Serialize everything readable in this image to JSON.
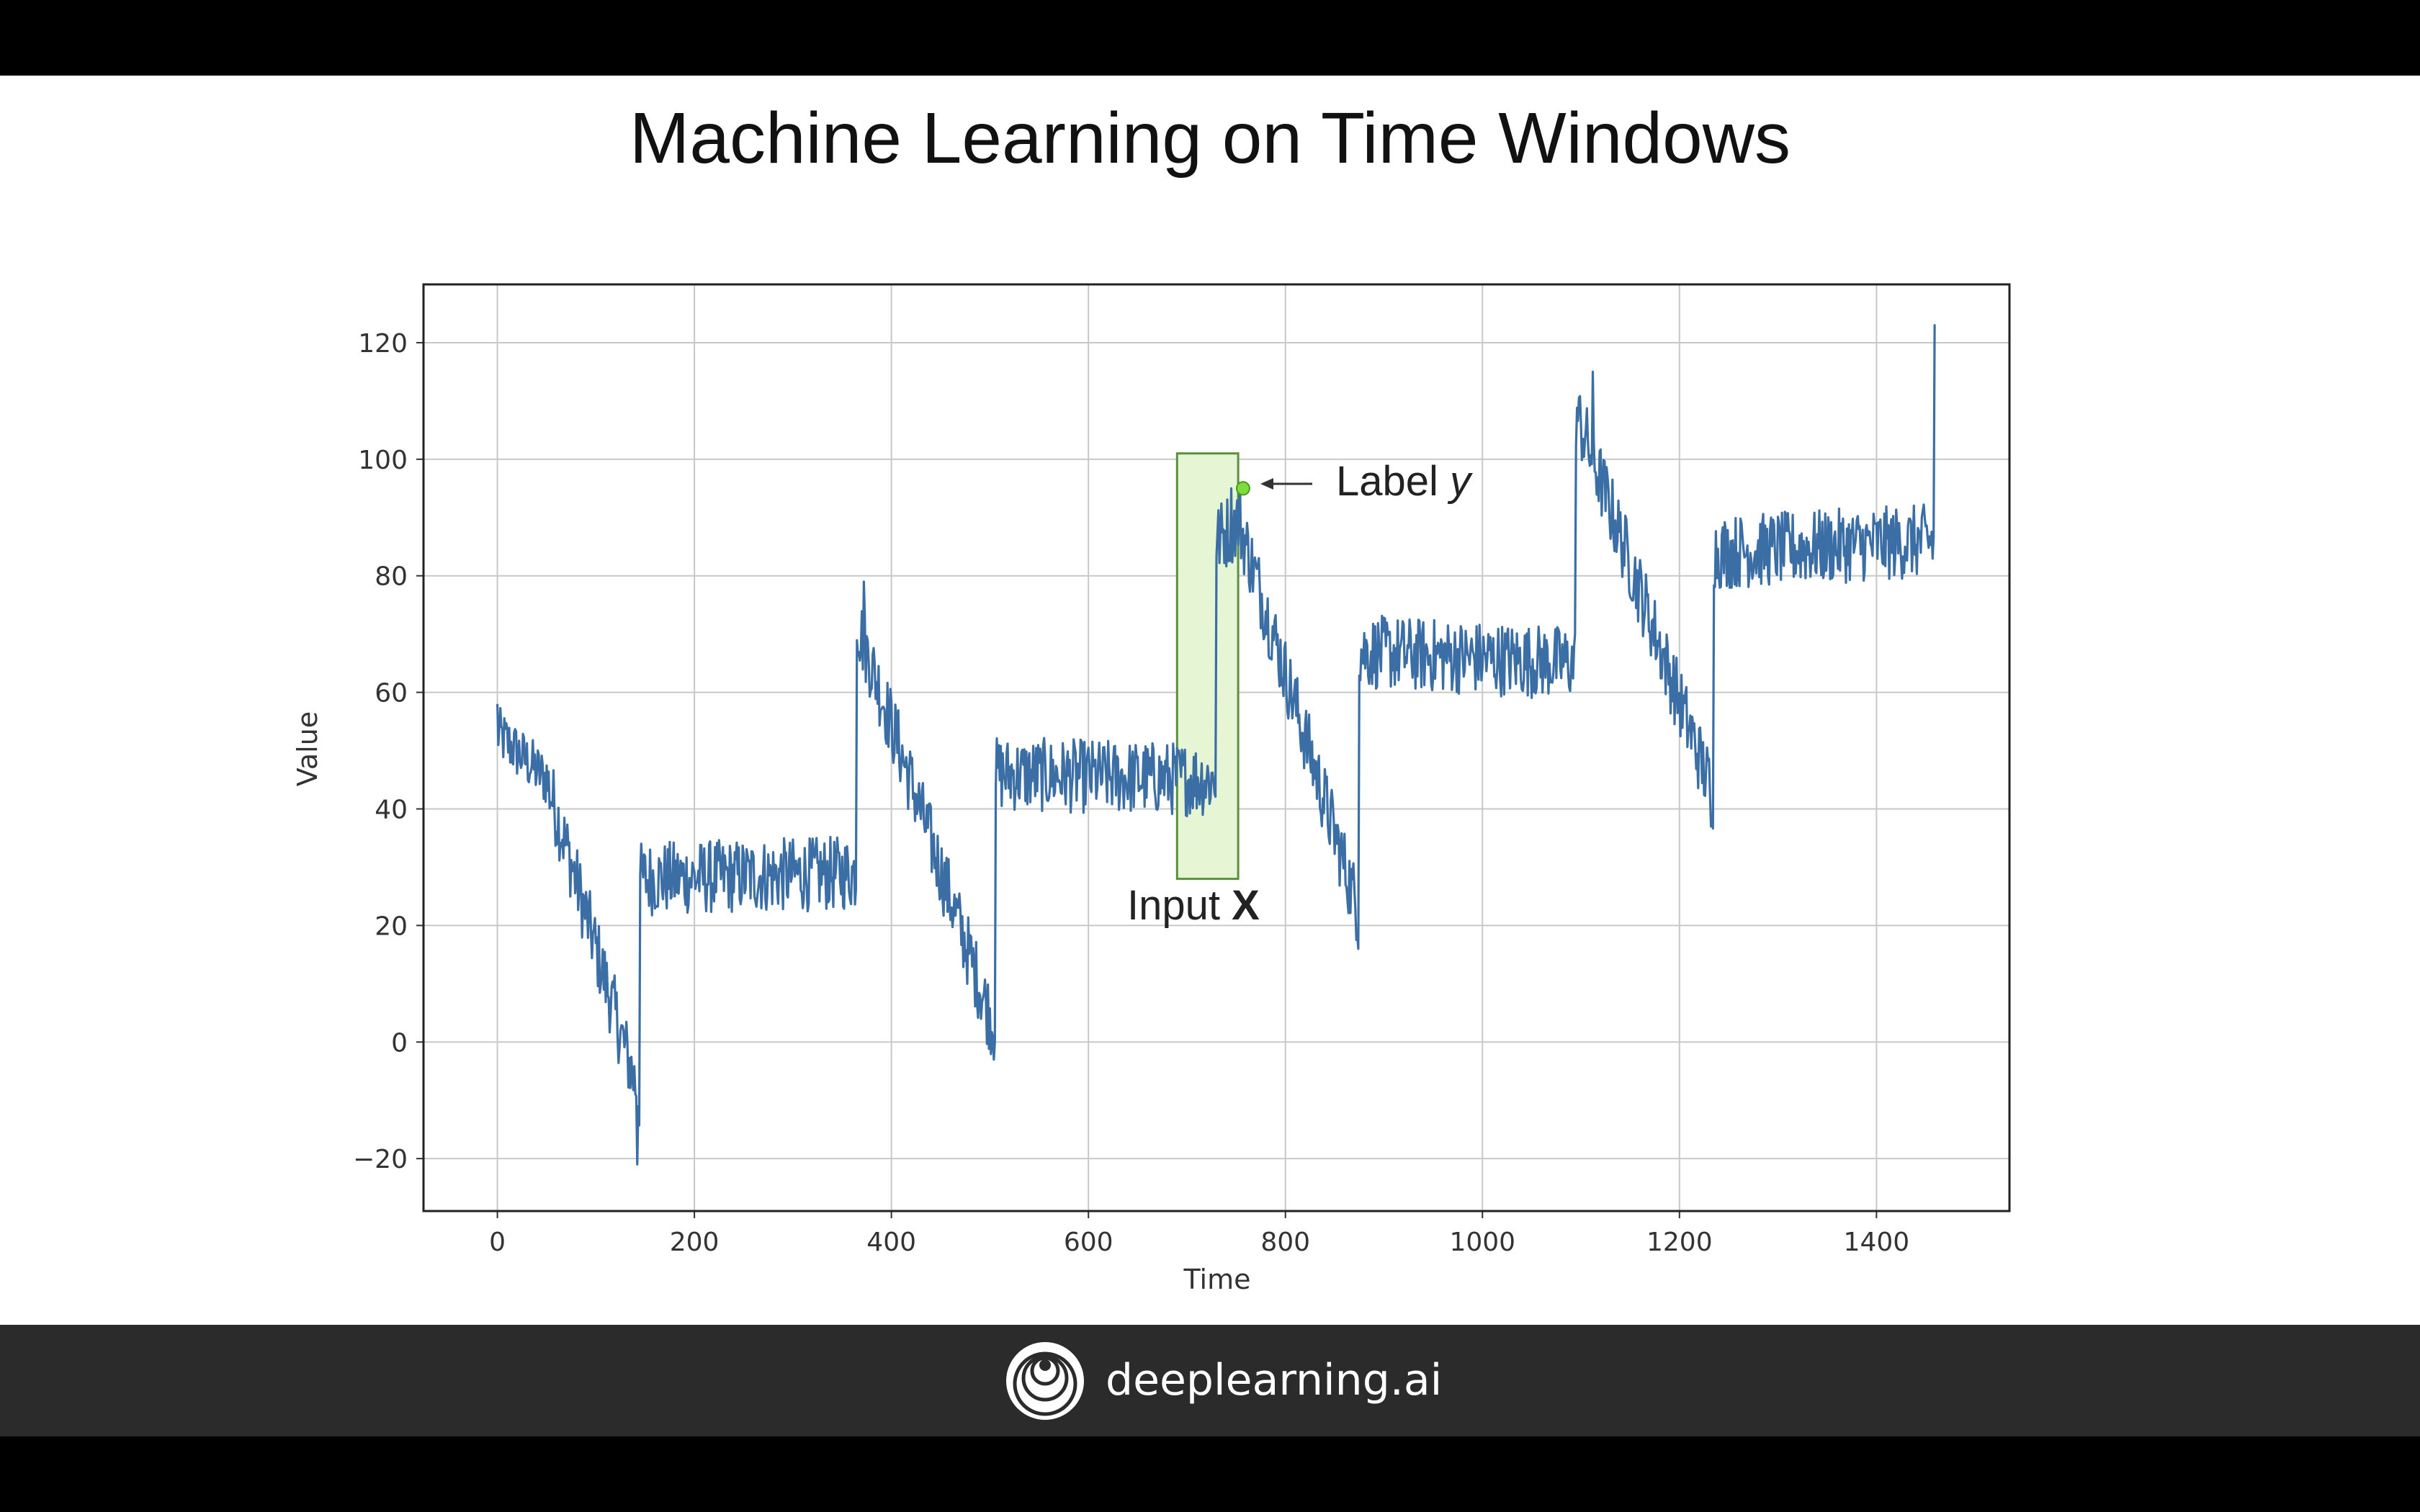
{
  "slide": {
    "title": "Machine Learning on Time Windows"
  },
  "footer": {
    "brand": "deeplearning.ai",
    "logo_icon": "deeplearning-logo-icon"
  },
  "chart_data": {
    "type": "line",
    "title": "",
    "xlabel": "Time",
    "ylabel": "Value",
    "xlim": [
      -75,
      1535
    ],
    "ylim": [
      -29,
      130
    ],
    "xticks": [
      0,
      200,
      400,
      600,
      800,
      1000,
      1200,
      1400
    ],
    "xtick_labels": [
      "0",
      "200",
      "400",
      "600",
      "800",
      "1000",
      "1200",
      "1400"
    ],
    "yticks": [
      -20,
      0,
      20,
      40,
      60,
      80,
      100,
      120
    ],
    "ytick_labels": [
      "−20",
      "0",
      "20",
      "40",
      "60",
      "80",
      "100",
      "120"
    ],
    "grid": true,
    "series": [
      {
        "color": "#3a6ea5",
        "x_start": 0,
        "x_end": 1460,
        "segments": [
          {
            "x0": 0,
            "x1": 50,
            "y0": 53,
            "y1": 45,
            "noise": 3
          },
          {
            "x0": 50,
            "x1": 145,
            "y0": 45,
            "y1": -10,
            "noise": 4
          },
          {
            "x0": 145,
            "x1": 365,
            "y0": 28,
            "y1": 29,
            "noise": 4
          },
          {
            "x0": 365,
            "x1": 505,
            "y0": 72,
            "y1": 2,
            "noise": 4
          },
          {
            "x0": 505,
            "x1": 730,
            "y0": 46,
            "y1": 45,
            "noise": 4
          },
          {
            "x0": 730,
            "x1": 755,
            "y0": 86,
            "y1": 90,
            "noise": 4
          },
          {
            "x0": 755,
            "x1": 875,
            "y0": 88,
            "y1": 22,
            "noise": 4
          },
          {
            "x0": 875,
            "x1": 1095,
            "y0": 67,
            "y1": 65,
            "noise": 4
          },
          {
            "x0": 1095,
            "x1": 1235,
            "y0": 108,
            "y1": 42,
            "noise": 4
          },
          {
            "x0": 1235,
            "x1": 1460,
            "y0": 84,
            "y1": 86,
            "noise": 4
          }
        ],
        "spikes": [
          {
            "x": 0,
            "y": 58
          },
          {
            "x": 142,
            "y": -21
          },
          {
            "x": 372,
            "y": 79
          },
          {
            "x": 505,
            "y": 0
          },
          {
            "x": 745,
            "y": 95
          },
          {
            "x": 874,
            "y": 16
          },
          {
            "x": 1112,
            "y": 115
          },
          {
            "x": 1232,
            "y": 37
          },
          {
            "x": 1459,
            "y": 123
          }
        ]
      }
    ],
    "window": {
      "x0": 690,
      "x1": 752,
      "y0": 28,
      "y1": 101,
      "fill": "#e6f5d4",
      "stroke": "#5a8f3e"
    },
    "label_point": {
      "x": 757,
      "y": 95,
      "color": "#7ddc3a"
    },
    "annotations": {
      "label_text": "Label ",
      "label_var": "y",
      "input_text": "Input ",
      "input_var": "X"
    }
  }
}
